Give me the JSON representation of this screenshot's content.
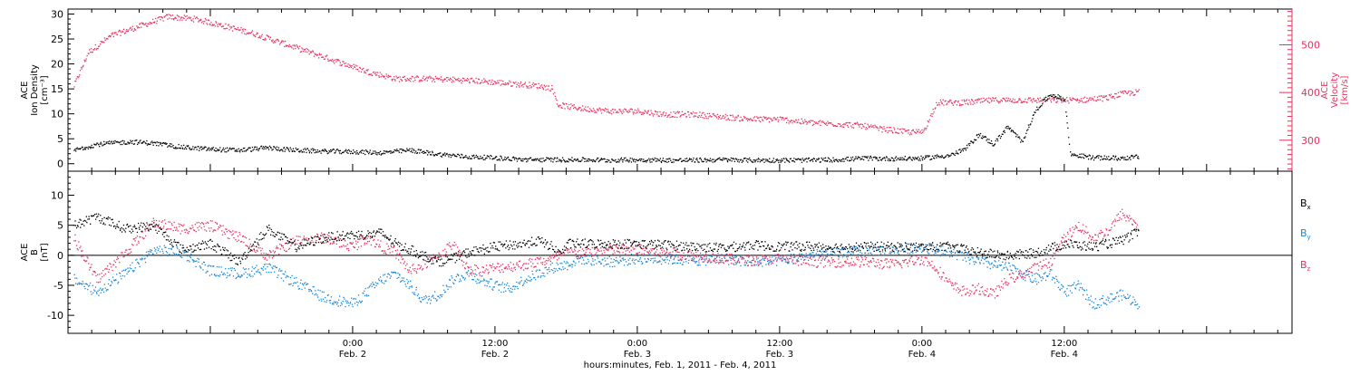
{
  "chart_data": [
    {
      "type": "scatter",
      "left_axis_label": [
        "ACE",
        "Ion Density",
        "[cm⁻³]"
      ],
      "right_axis_label": [
        "ACE",
        "Velocity",
        "[km/s]"
      ],
      "y_left_ticks": [
        "0",
        "5",
        "10",
        "15",
        "20",
        "25",
        "30"
      ],
      "y_left_range": [
        -1.5,
        31
      ],
      "y_right_ticks": [
        "300",
        "400",
        "500"
      ],
      "y_right_range": [
        235,
        575
      ],
      "series": [
        {
          "axis": "left",
          "color": "#000000",
          "anchors": [
            [
              -0.98,
              2.8
            ],
            [
              -0.9,
              4.0
            ],
            [
              -0.78,
              4.5
            ],
            [
              -0.7,
              4.2
            ],
            [
              -0.6,
              3.4
            ],
            [
              -0.5,
              3.0
            ],
            [
              -0.4,
              2.8
            ],
            [
              -0.3,
              3.3
            ],
            [
              -0.2,
              2.8
            ],
            [
              -0.1,
              2.6
            ],
            [
              0.0,
              2.5
            ],
            [
              0.1,
              2.3
            ],
            [
              0.2,
              2.8
            ],
            [
              0.3,
              2.0
            ],
            [
              0.4,
              1.5
            ],
            [
              0.5,
              1.3
            ],
            [
              0.6,
              0.9
            ],
            [
              0.7,
              0.9
            ],
            [
              0.8,
              0.9
            ],
            [
              0.9,
              0.8
            ],
            [
              1.0,
              0.9
            ],
            [
              1.1,
              0.8
            ],
            [
              1.2,
              0.8
            ],
            [
              1.3,
              0.9
            ],
            [
              1.4,
              0.8
            ],
            [
              1.5,
              0.8
            ],
            [
              1.6,
              0.8
            ],
            [
              1.7,
              0.9
            ],
            [
              1.8,
              1.2
            ],
            [
              1.9,
              1.1
            ],
            [
              2.0,
              1.2
            ],
            [
              2.05,
              1.5
            ],
            [
              2.1,
              1.8
            ],
            [
              2.15,
              3.0
            ],
            [
              2.2,
              6.0
            ],
            [
              2.25,
              4.0
            ],
            [
              2.3,
              7.5
            ],
            [
              2.35,
              4.5
            ],
            [
              2.4,
              11.0
            ],
            [
              2.45,
              14.0
            ],
            [
              2.5,
              13.0
            ],
            [
              2.52,
              2.0
            ],
            [
              2.6,
              1.3
            ],
            [
              2.7,
              1.2
            ],
            [
              2.76,
              1.5
            ]
          ]
        },
        {
          "axis": "right",
          "color": "#e8315f",
          "anchors": [
            [
              -0.98,
              415
            ],
            [
              -0.93,
              485
            ],
            [
              -0.85,
              520
            ],
            [
              -0.75,
              540
            ],
            [
              -0.65,
              560
            ],
            [
              -0.55,
              555
            ],
            [
              -0.45,
              540
            ],
            [
              -0.35,
              525
            ],
            [
              -0.25,
              505
            ],
            [
              -0.15,
              485
            ],
            [
              -0.05,
              465
            ],
            [
              0.05,
              445
            ],
            [
              0.15,
              430
            ],
            [
              0.25,
              430
            ],
            [
              0.35,
              428
            ],
            [
              0.45,
              425
            ],
            [
              0.55,
              420
            ],
            [
              0.65,
              415
            ],
            [
              0.7,
              410
            ],
            [
              0.72,
              375
            ],
            [
              0.8,
              368
            ],
            [
              0.9,
              362
            ],
            [
              1.0,
              362
            ],
            [
              1.1,
              355
            ],
            [
              1.2,
              355
            ],
            [
              1.3,
              350
            ],
            [
              1.4,
              345
            ],
            [
              1.5,
              345
            ],
            [
              1.6,
              338
            ],
            [
              1.7,
              335
            ],
            [
              1.78,
              332
            ],
            [
              1.85,
              325
            ],
            [
              1.95,
              318
            ],
            [
              2.0,
              318
            ],
            [
              2.02,
              338
            ],
            [
              2.05,
              380
            ],
            [
              2.15,
              380
            ],
            [
              2.25,
              385
            ],
            [
              2.35,
              385
            ],
            [
              2.45,
              385
            ],
            [
              2.55,
              385
            ],
            [
              2.65,
              390
            ],
            [
              2.7,
              398
            ],
            [
              2.76,
              402
            ]
          ]
        }
      ]
    },
    {
      "type": "scatter",
      "left_axis_label": [
        "ACE",
        "B",
        "[nT]"
      ],
      "y_ticks": [
        "-10",
        "-5",
        "0",
        "5",
        "10"
      ],
      "y_range": [
        -13,
        14
      ],
      "zero_line": true,
      "legend": [
        {
          "label": "B",
          "sub": "x",
          "color": "#000000"
        },
        {
          "label": "B",
          "sub": "y",
          "color": "#1a86d6"
        },
        {
          "label": "B",
          "sub": "z",
          "color": "#e8315f"
        }
      ],
      "legend_position": "right",
      "series": [
        {
          "name": "Bx",
          "color": "#000000",
          "anchors": [
            [
              -0.98,
              5.0
            ],
            [
              -0.9,
              6.5
            ],
            [
              -0.8,
              4.5
            ],
            [
              -0.7,
              5.0
            ],
            [
              -0.6,
              1.0
            ],
            [
              -0.5,
              2.0
            ],
            [
              -0.4,
              -1.0
            ],
            [
              -0.3,
              4.5
            ],
            [
              -0.2,
              1.5
            ],
            [
              -0.1,
              3.0
            ],
            [
              0.0,
              3.5
            ],
            [
              0.05,
              3.5
            ],
            [
              0.1,
              3.8
            ],
            [
              0.15,
              2.0
            ],
            [
              0.2,
              1.0
            ],
            [
              0.3,
              -1.0
            ],
            [
              0.35,
              -0.5
            ],
            [
              0.4,
              0.5
            ],
            [
              0.5,
              1.5
            ],
            [
              0.6,
              2.0
            ],
            [
              0.65,
              2.5
            ],
            [
              0.7,
              1.5
            ],
            [
              0.72,
              0.5
            ],
            [
              0.74,
              1.0
            ],
            [
              0.76,
              2.0
            ],
            [
              0.9,
              2.0
            ],
            [
              1.0,
              2.0
            ],
            [
              1.1,
              1.8
            ],
            [
              1.2,
              1.5
            ],
            [
              1.3,
              1.3
            ],
            [
              1.4,
              1.8
            ],
            [
              1.5,
              1.5
            ],
            [
              1.6,
              1.6
            ],
            [
              1.7,
              1.4
            ],
            [
              1.8,
              1.5
            ],
            [
              1.9,
              1.5
            ],
            [
              2.0,
              1.4
            ],
            [
              2.1,
              1.5
            ],
            [
              2.2,
              0.5
            ],
            [
              2.3,
              0.0
            ],
            [
              2.4,
              0.5
            ],
            [
              2.5,
              2.0
            ],
            [
              2.6,
              1.5
            ],
            [
              2.7,
              2.5
            ],
            [
              2.76,
              4.0
            ]
          ]
        },
        {
          "name": "By",
          "color": "#1a86d6",
          "anchors": [
            [
              -0.98,
              -4.0
            ],
            [
              -0.9,
              -6.0
            ],
            [
              -0.8,
              -3.0
            ],
            [
              -0.7,
              1.0
            ],
            [
              -0.6,
              0.5
            ],
            [
              -0.5,
              -2.5
            ],
            [
              -0.4,
              -3.0
            ],
            [
              -0.3,
              -2.0
            ],
            [
              -0.2,
              -4.5
            ],
            [
              -0.1,
              -7.0
            ],
            [
              0.0,
              -8.0
            ],
            [
              0.05,
              -6.0
            ],
            [
              0.1,
              -4.0
            ],
            [
              0.15,
              -3.0
            ],
            [
              0.2,
              -5.0
            ],
            [
              0.25,
              -7.5
            ],
            [
              0.3,
              -6.5
            ],
            [
              0.35,
              -4.0
            ],
            [
              0.4,
              -3.0
            ],
            [
              0.5,
              -5.0
            ],
            [
              0.55,
              -5.5
            ],
            [
              0.6,
              -4.0
            ],
            [
              0.7,
              -2.0
            ],
            [
              0.75,
              -1.5
            ],
            [
              0.8,
              -0.5
            ],
            [
              0.9,
              -1.0
            ],
            [
              1.0,
              -0.5
            ],
            [
              1.1,
              -0.5
            ],
            [
              1.2,
              -0.8
            ],
            [
              1.3,
              -0.5
            ],
            [
              1.4,
              -1.0
            ],
            [
              1.5,
              -0.8
            ],
            [
              1.6,
              0.0
            ],
            [
              1.7,
              0.5
            ],
            [
              1.8,
              0.8
            ],
            [
              1.9,
              1.0
            ],
            [
              2.0,
              1.5
            ],
            [
              2.1,
              0.5
            ],
            [
              2.2,
              -1.0
            ],
            [
              2.3,
              -2.0
            ],
            [
              2.4,
              -4.0
            ],
            [
              2.45,
              -3.0
            ],
            [
              2.5,
              -6.0
            ],
            [
              2.55,
              -5.0
            ],
            [
              2.6,
              -8.0
            ],
            [
              2.7,
              -6.5
            ],
            [
              2.76,
              -8.0
            ]
          ]
        },
        {
          "name": "Bz",
          "color": "#e8315f",
          "anchors": [
            [
              -0.98,
              3.0
            ],
            [
              -0.9,
              -4.0
            ],
            [
              -0.8,
              0.5
            ],
            [
              -0.7,
              5.5
            ],
            [
              -0.6,
              4.5
            ],
            [
              -0.5,
              5.0
            ],
            [
              -0.4,
              3.0
            ],
            [
              -0.3,
              0.0
            ],
            [
              -0.2,
              2.5
            ],
            [
              -0.1,
              3.0
            ],
            [
              0.0,
              1.5
            ],
            [
              0.05,
              3.0
            ],
            [
              0.1,
              1.5
            ],
            [
              0.15,
              0.5
            ],
            [
              0.2,
              -2.5
            ],
            [
              0.25,
              -1.5
            ],
            [
              0.3,
              0.0
            ],
            [
              0.35,
              2.0
            ],
            [
              0.4,
              -2.0
            ],
            [
              0.45,
              -2.5
            ],
            [
              0.5,
              -2.0
            ],
            [
              0.6,
              -1.5
            ],
            [
              0.7,
              -0.5
            ],
            [
              0.75,
              0.5
            ],
            [
              0.8,
              0.5
            ],
            [
              0.9,
              1.0
            ],
            [
              1.0,
              1.0
            ],
            [
              1.1,
              0.5
            ],
            [
              1.2,
              0.0
            ],
            [
              1.3,
              -0.5
            ],
            [
              1.4,
              -0.8
            ],
            [
              1.5,
              -0.5
            ],
            [
              1.6,
              -1.0
            ],
            [
              1.7,
              -1.0
            ],
            [
              1.8,
              -1.0
            ],
            [
              1.9,
              -1.5
            ],
            [
              2.0,
              -0.5
            ],
            [
              2.05,
              -2.0
            ],
            [
              2.1,
              -5.0
            ],
            [
              2.15,
              -6.0
            ],
            [
              2.2,
              -5.5
            ],
            [
              2.25,
              -6.5
            ],
            [
              2.3,
              -4.0
            ],
            [
              2.35,
              -3.0
            ],
            [
              2.45,
              -1.0
            ],
            [
              2.5,
              3.0
            ],
            [
              2.55,
              5.0
            ],
            [
              2.6,
              3.0
            ],
            [
              2.65,
              4.0
            ],
            [
              2.7,
              7.0
            ],
            [
              2.76,
              5.0
            ]
          ]
        }
      ]
    }
  ],
  "x_axis": {
    "range_days": [
      -1.0,
      3.3
    ],
    "major_labels": [
      {
        "day": 0.0,
        "time": "0:00",
        "date": "Feb. 2"
      },
      {
        "day": 0.5,
        "time": "12:00",
        "date": "Feb. 2"
      },
      {
        "day": 1.0,
        "time": "0:00",
        "date": "Feb. 3"
      },
      {
        "day": 1.5,
        "time": "12:00",
        "date": "Feb. 3"
      },
      {
        "day": 2.0,
        "time": "0:00",
        "date": "Feb. 4"
      },
      {
        "day": 2.5,
        "time": "12:00",
        "date": "Feb. 4"
      }
    ],
    "title": "hours:minutes, Feb.  1, 2011 - Feb.  4, 2011"
  },
  "colors": {
    "black": "#000000",
    "pink": "#e8315f",
    "blue": "#1a86d6"
  }
}
